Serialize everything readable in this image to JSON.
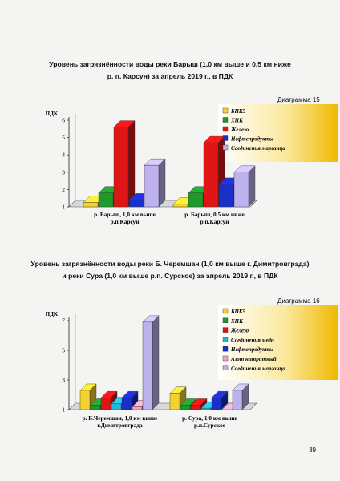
{
  "page_number": "39",
  "charts": [
    {
      "title_line1": "Уровень загрязнённости воды реки Барыш (1,0 км выше и 0,5 км ниже",
      "title_line2": "р. п. Карсун) за апрель 2019 г., в ПДК",
      "diagram_label": "Диаграмма 15"
    },
    {
      "title_line1": "Уровень загрязнённости воды реки Б. Черемшан (1,0 км выше г. Димитровграда)",
      "title_line2": "и реки Сура (1,0 км выше р.п. Сурское) за апрель 2019 г., в ПДК",
      "diagram_label": "Диаграмма 16"
    }
  ],
  "colors": {
    "БПК5": "#f2d230",
    "ХПК": "#1f9a2a",
    "Железо": "#e01515",
    "Соединения меди": "#22b8d8",
    "Нефтепродукты": "#1a2ec8",
    "Азот нитритный": "#f2a2c8",
    "Соединения марганца": "#bdb2ee"
  },
  "chart_data": [
    {
      "type": "bar",
      "ylabel": "ПДК",
      "ylim": [
        1,
        6
      ],
      "yticks": [
        1,
        2,
        3,
        4,
        5,
        6
      ],
      "categories": [
        "р. Барыш, 1,0 км выше\nр.п.Карсун",
        "р. Барыш, 0,5 км ниже\nр.п.Карсун"
      ],
      "series": [
        {
          "name": "БПК5",
          "values": [
            1.25,
            1.15
          ]
        },
        {
          "name": "ХПК",
          "values": [
            1.8,
            1.8
          ]
        },
        {
          "name": "Железо",
          "values": [
            5.6,
            4.7
          ]
        },
        {
          "name": "Нефтепродукты",
          "values": [
            1.4,
            2.3
          ]
        },
        {
          "name": "Соединения марганца",
          "values": [
            3.4,
            3.0
          ]
        }
      ],
      "legend_position": "top-right"
    },
    {
      "type": "bar",
      "ylabel": "ПДК",
      "ylim": [
        1,
        7
      ],
      "yticks": [
        1,
        3,
        5,
        7
      ],
      "categories": [
        "р. Б.Черемшан, 1,0 км выше\nг.Димитровграда",
        "р. Сура, 1,0 км выше\nр.п.Сурское"
      ],
      "series": [
        {
          "name": "БПК5",
          "values": [
            2.3,
            2.1
          ]
        },
        {
          "name": "ХПК",
          "values": [
            1.3,
            1.3
          ]
        },
        {
          "name": "Железо",
          "values": [
            1.8,
            1.3
          ]
        },
        {
          "name": "Соединения меди",
          "values": [
            1.4,
            1.1
          ]
        },
        {
          "name": "Нефтепродукты",
          "values": [
            1.8,
            1.8
          ]
        },
        {
          "name": "Азот нитритный",
          "values": [
            1.2,
            1.0
          ]
        },
        {
          "name": "Соединения марганца",
          "values": [
            6.9,
            2.3
          ]
        }
      ],
      "legend_position": "top-right"
    }
  ]
}
